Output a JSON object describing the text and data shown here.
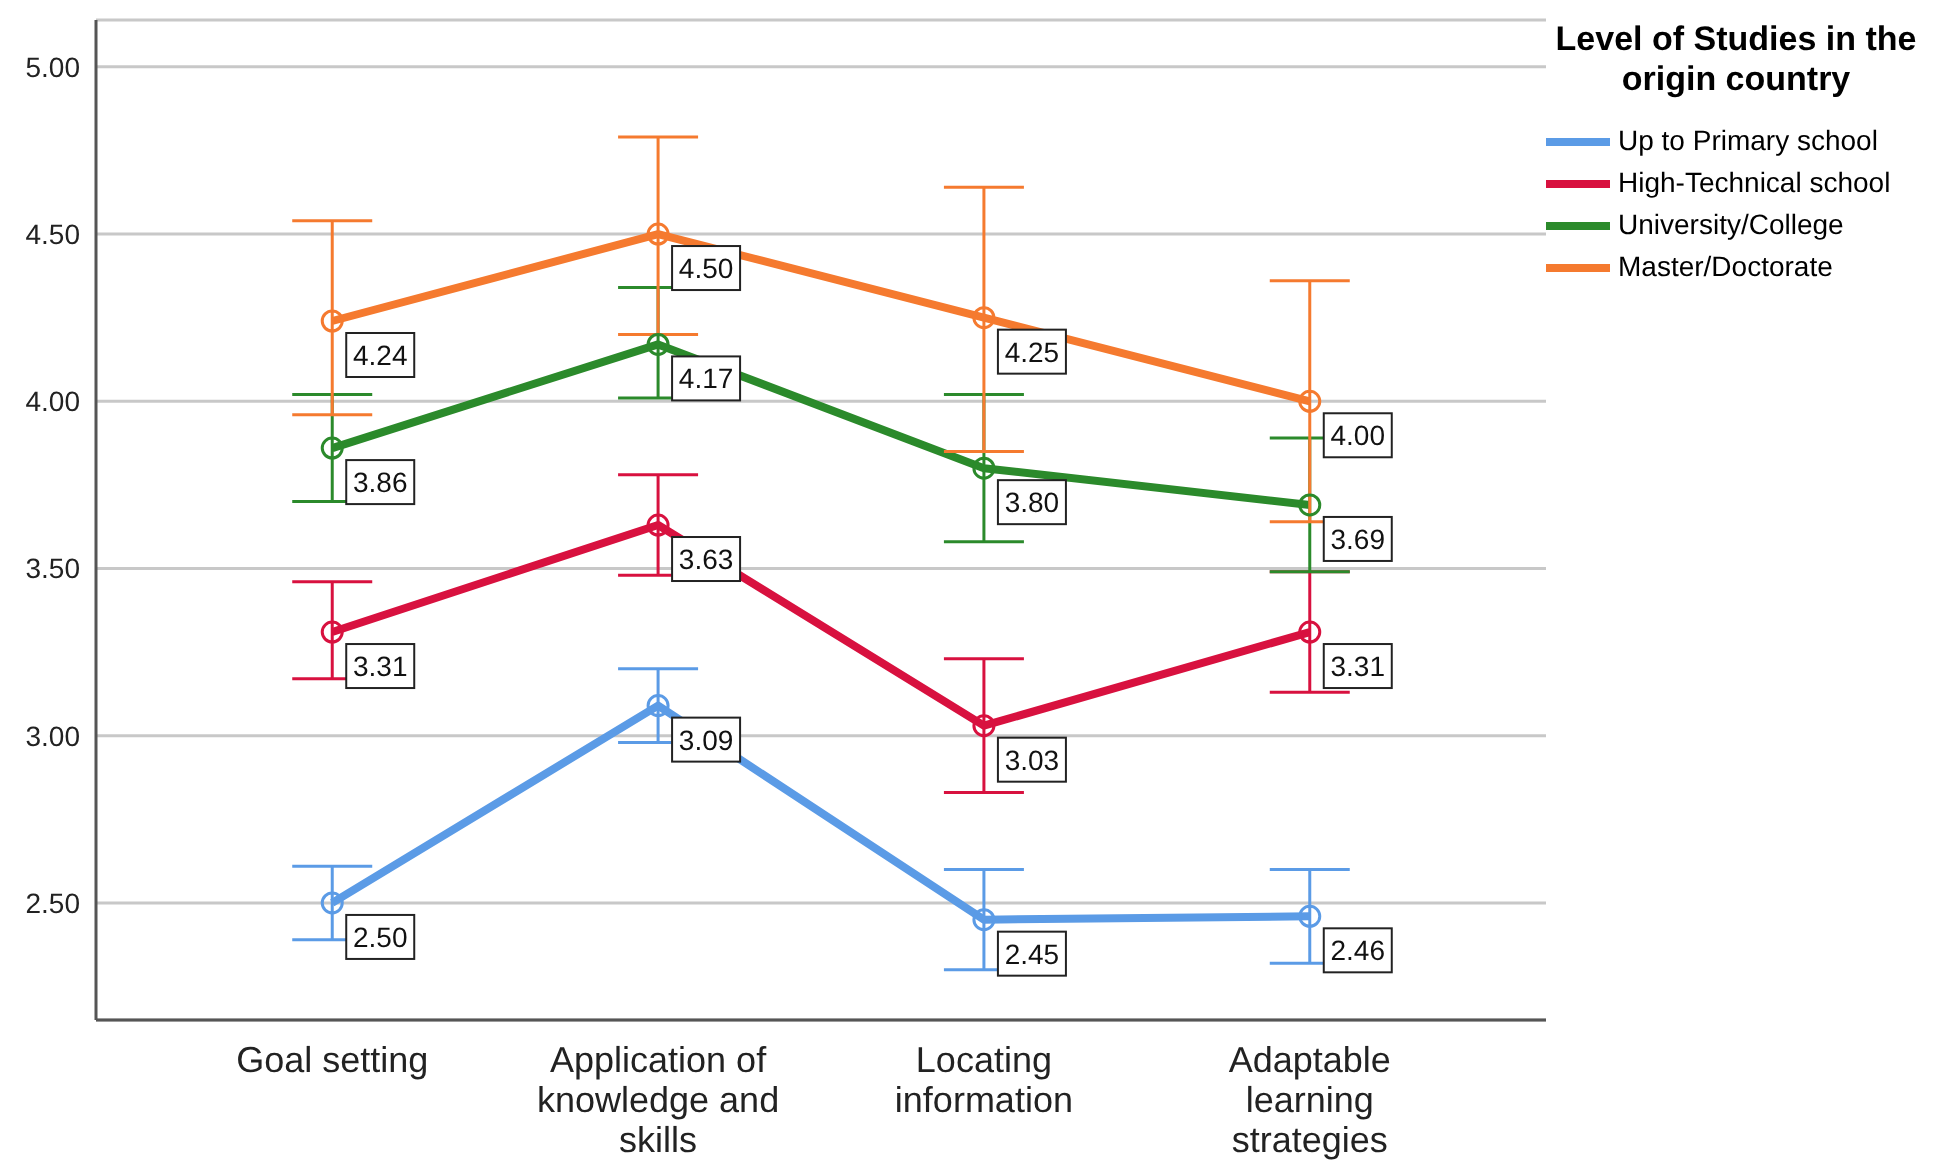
{
  "chart_data": {
    "type": "line",
    "categories": [
      "Goal setting",
      "Application of knowledge and skills",
      "Locating information",
      "Adaptable learning strategies"
    ],
    "legend_title": "Level of Studies in the origin country",
    "series": [
      {
        "name": "Up to Primary school",
        "color": "#5b9be6",
        "values": [
          2.5,
          3.09,
          2.45,
          2.46
        ],
        "value_labels": [
          "2.50",
          "3.09",
          "2.45",
          "2.46"
        ],
        "errors": [
          [
            2.39,
            2.61
          ],
          [
            2.98,
            3.2
          ],
          [
            2.3,
            2.6
          ],
          [
            2.32,
            2.6
          ]
        ]
      },
      {
        "name": "High-Technical school",
        "color": "#d8113f",
        "values": [
          3.31,
          3.63,
          3.03,
          3.31
        ],
        "value_labels": [
          "3.31",
          "3.63",
          "3.03",
          "3.31"
        ],
        "errors": [
          [
            3.17,
            3.46
          ],
          [
            3.48,
            3.78
          ],
          [
            2.83,
            3.23
          ],
          [
            3.13,
            3.49
          ]
        ]
      },
      {
        "name": "University/College",
        "color": "#2b8a2b",
        "values": [
          3.86,
          4.17,
          3.8,
          3.69
        ],
        "value_labels": [
          "3.86",
          "4.17",
          "3.80",
          "3.69"
        ],
        "errors": [
          [
            3.7,
            4.02
          ],
          [
            4.01,
            4.34
          ],
          [
            3.58,
            4.02
          ],
          [
            3.49,
            3.89
          ]
        ]
      },
      {
        "name": "Master/Doctorate",
        "color": "#f57a2f",
        "values": [
          4.24,
          4.5,
          4.25,
          4.0
        ],
        "value_labels": [
          "4.24",
          "4.50",
          "4.25",
          "4.00"
        ],
        "errors": [
          [
            3.96,
            4.54
          ],
          [
            4.2,
            4.79
          ],
          [
            3.85,
            4.64
          ],
          [
            3.64,
            4.36
          ]
        ]
      }
    ],
    "ylim": [
      2.15,
      5.14
    ],
    "yticks": [
      {
        "value": 2.5,
        "label": "2.50"
      },
      {
        "value": 3,
        "label": "3.00"
      },
      {
        "value": 3.5,
        "label": "3.50"
      },
      {
        "value": 4,
        "label": "4.00"
      },
      {
        "value": 4.5,
        "label": "4.50"
      },
      {
        "value": 5,
        "label": "5.00"
      }
    ],
    "grid": "y",
    "legend": "top right",
    "marker": "circle",
    "line_style": "solid"
  }
}
